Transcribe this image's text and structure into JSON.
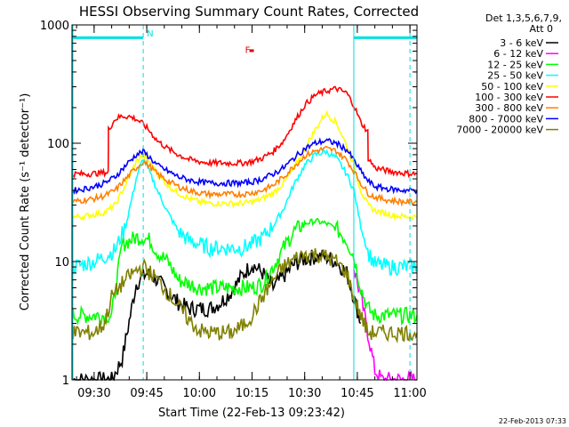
{
  "chart_data": {
    "type": "line",
    "title": "HESSI Observing Summary Count Rates, Corrected",
    "ylabel": "Corrected Count Rate (s⁻¹ detector⁻¹)",
    "xlabel": "Start Time (22-Feb-13 09:23:42)",
    "footer": "22-Feb-2013 07:33",
    "yscale": "log",
    "ylim": [
      1,
      1000
    ],
    "xlim_minutes": [
      23.7,
      122.0
    ],
    "y_ticks": [
      {
        "value": 1,
        "label": "1"
      },
      {
        "value": 10,
        "label": "10"
      },
      {
        "value": 100,
        "label": "100"
      },
      {
        "value": 1000,
        "label": "1000"
      }
    ],
    "x_ticks": [
      {
        "value": 30,
        "label": "09:30"
      },
      {
        "value": 45,
        "label": "09:45"
      },
      {
        "value": 60,
        "label": "10:00"
      },
      {
        "value": 75,
        "label": "10:15"
      },
      {
        "value": 90,
        "label": "10:30"
      },
      {
        "value": 105,
        "label": "10:45"
      },
      {
        "value": 120,
        "label": "11:00"
      }
    ],
    "legend_header": [
      "Det 1,3,5,6,7,9,",
      "Att 0"
    ],
    "legend_position": "right",
    "annotations": [
      {
        "text": "N",
        "x": 45,
        "y": 800,
        "color": "#00e0e0"
      },
      {
        "text": "F",
        "x": 73,
        "y": 580,
        "color": "#e00000"
      }
    ],
    "night_bars": [
      {
        "x0": 23.7,
        "x1": 44.0,
        "y": 780
      },
      {
        "x0": 104.0,
        "x1": 122.0,
        "y": 780
      }
    ],
    "vlines_solid": [
      104.0
    ],
    "vlines_dashed": [
      44.0,
      120.0
    ],
    "series": [
      {
        "name": "3 - 6 keV",
        "color": "#000000",
        "x": [
          24,
          30,
          33,
          35,
          38,
          42,
          45,
          48,
          51,
          54,
          57,
          60,
          63,
          66,
          69,
          72,
          75,
          78,
          81,
          84,
          87,
          90,
          93,
          96,
          99,
          102,
          104,
          106
        ],
        "y": [
          1,
          1,
          1,
          1,
          1.5,
          6.5,
          8,
          7,
          5.5,
          4.5,
          4,
          4,
          4,
          4.5,
          5.5,
          7.5,
          9.5,
          8,
          6,
          7.5,
          9.5,
          10.5,
          11,
          11,
          10,
          8,
          5,
          3
        ]
      },
      {
        "name": "6 - 12 keV",
        "color": "#ff00ff",
        "x": [
          104,
          106,
          108,
          110,
          112,
          114,
          116,
          118,
          120,
          122
        ],
        "y": [
          9,
          5,
          2.5,
          1.2,
          1,
          1,
          1,
          1,
          1,
          1
        ]
      },
      {
        "name": "12 - 25 keV",
        "color": "#00ff00",
        "x": [
          24,
          30,
          33,
          35,
          38,
          40,
          42,
          44,
          46,
          48,
          51,
          54,
          57,
          60,
          63,
          66,
          69,
          72,
          75,
          78,
          81,
          84,
          87,
          90,
          93,
          96,
          99,
          102,
          104,
          106,
          108,
          110,
          114,
          118,
          122
        ],
        "y": [
          3.5,
          3.5,
          3.5,
          3.5,
          14,
          15,
          16,
          16,
          15,
          12,
          10,
          7,
          6.5,
          6,
          6,
          6,
          6,
          6,
          6,
          6.5,
          9,
          13,
          18,
          21,
          22,
          21,
          19,
          15,
          11,
          6,
          4,
          3.5,
          3.5,
          3.5,
          3.5
        ]
      },
      {
        "name": "25 - 50 keV",
        "color": "#00ffff",
        "x": [
          24,
          27,
          30,
          33,
          36,
          39,
          42,
          44,
          46,
          48,
          51,
          54,
          57,
          60,
          63,
          66,
          69,
          72,
          75,
          78,
          81,
          84,
          87,
          90,
          93,
          96,
          99,
          102,
          104,
          106,
          108,
          110,
          114,
          118,
          122
        ],
        "y": [
          9,
          9.5,
          10,
          11,
          12.5,
          20,
          50,
          75,
          55,
          40,
          26,
          18,
          15,
          14,
          13,
          13,
          13,
          13,
          14,
          16,
          20,
          28,
          45,
          65,
          80,
          85,
          75,
          55,
          40,
          20,
          12,
          9.5,
          9,
          9,
          9
        ]
      },
      {
        "name": "50 - 100 keV",
        "color": "#ffff00",
        "x": [
          24,
          27,
          30,
          33,
          36,
          39,
          42,
          44,
          46,
          48,
          51,
          54,
          57,
          60,
          63,
          66,
          69,
          72,
          75,
          78,
          81,
          84,
          87,
          90,
          93,
          96,
          99,
          102,
          104,
          106,
          108,
          110,
          114,
          118,
          122
        ],
        "y": [
          24,
          24,
          25,
          26,
          30,
          45,
          70,
          80,
          68,
          55,
          44,
          38,
          34,
          32,
          31,
          31,
          31,
          31,
          32,
          34,
          38,
          46,
          62,
          90,
          130,
          180,
          150,
          95,
          65,
          40,
          30,
          27,
          25,
          24,
          24
        ]
      },
      {
        "name": "100 - 300 keV",
        "color": "#ff0000",
        "x": [
          24,
          28,
          32,
          34,
          34.1,
          36,
          38,
          40,
          42,
          44,
          46,
          48,
          51,
          54,
          57,
          60,
          63,
          66,
          69,
          72,
          75,
          78,
          81,
          84,
          87,
          90,
          93,
          96,
          99,
          102,
          104,
          106,
          108,
          108.1,
          110,
          114,
          118,
          122
        ],
        "y": [
          55,
          55,
          56,
          57,
          130,
          160,
          170,
          168,
          160,
          145,
          125,
          105,
          90,
          80,
          73,
          70,
          68,
          68,
          68,
          68,
          70,
          75,
          85,
          105,
          150,
          210,
          255,
          275,
          290,
          265,
          210,
          150,
          125,
          75,
          62,
          58,
          56,
          55
        ]
      },
      {
        "name": "300 - 800 keV",
        "color": "#ff8000",
        "x": [
          24,
          27,
          30,
          33,
          36,
          39,
          42,
          44,
          46,
          48,
          51,
          54,
          57,
          60,
          63,
          66,
          69,
          72,
          75,
          78,
          81,
          84,
          87,
          90,
          93,
          96,
          99,
          102,
          104,
          106,
          108,
          110,
          114,
          118,
          122
        ],
        "y": [
          32,
          33,
          34,
          36,
          40,
          50,
          62,
          70,
          63,
          55,
          48,
          43,
          40,
          38,
          37,
          37,
          37,
          37,
          38,
          40,
          44,
          52,
          64,
          78,
          86,
          90,
          86,
          72,
          58,
          46,
          38,
          35,
          33,
          32,
          32
        ]
      },
      {
        "name": "800 - 7000 keV",
        "color": "#0000ff",
        "x": [
          24,
          27,
          30,
          33,
          36,
          39,
          42,
          44,
          46,
          48,
          51,
          54,
          57,
          60,
          63,
          66,
          69,
          72,
          75,
          78,
          81,
          84,
          87,
          90,
          93,
          96,
          99,
          102,
          104,
          106,
          108,
          110,
          114,
          118,
          122
        ],
        "y": [
          40,
          41,
          43,
          46,
          52,
          65,
          80,
          85,
          75,
          65,
          58,
          52,
          49,
          47,
          46,
          46,
          46,
          46,
          47,
          50,
          55,
          62,
          75,
          90,
          100,
          105,
          100,
          88,
          72,
          58,
          48,
          43,
          41,
          40,
          40
        ]
      },
      {
        "name": "7000 - 20000 keV",
        "color": "#808000",
        "x": [
          24,
          27,
          30,
          33,
          35,
          38,
          41,
          44,
          46,
          48,
          51,
          54,
          57,
          60,
          63,
          66,
          69,
          72,
          75,
          78,
          81,
          84,
          87,
          90,
          93,
          96,
          99,
          102,
          104,
          106,
          108,
          110,
          114,
          118,
          122
        ],
        "y": [
          2.5,
          2.5,
          2.5,
          3,
          5,
          6.5,
          8,
          9,
          8,
          7,
          5.5,
          4.2,
          3.2,
          2.6,
          2.5,
          2.5,
          2.5,
          2.8,
          3.5,
          5,
          7,
          9,
          10.5,
          11.5,
          11.5,
          11,
          10,
          8,
          5,
          3.5,
          2.5,
          2.5,
          2.5,
          2.5,
          2.5
        ]
      }
    ]
  }
}
